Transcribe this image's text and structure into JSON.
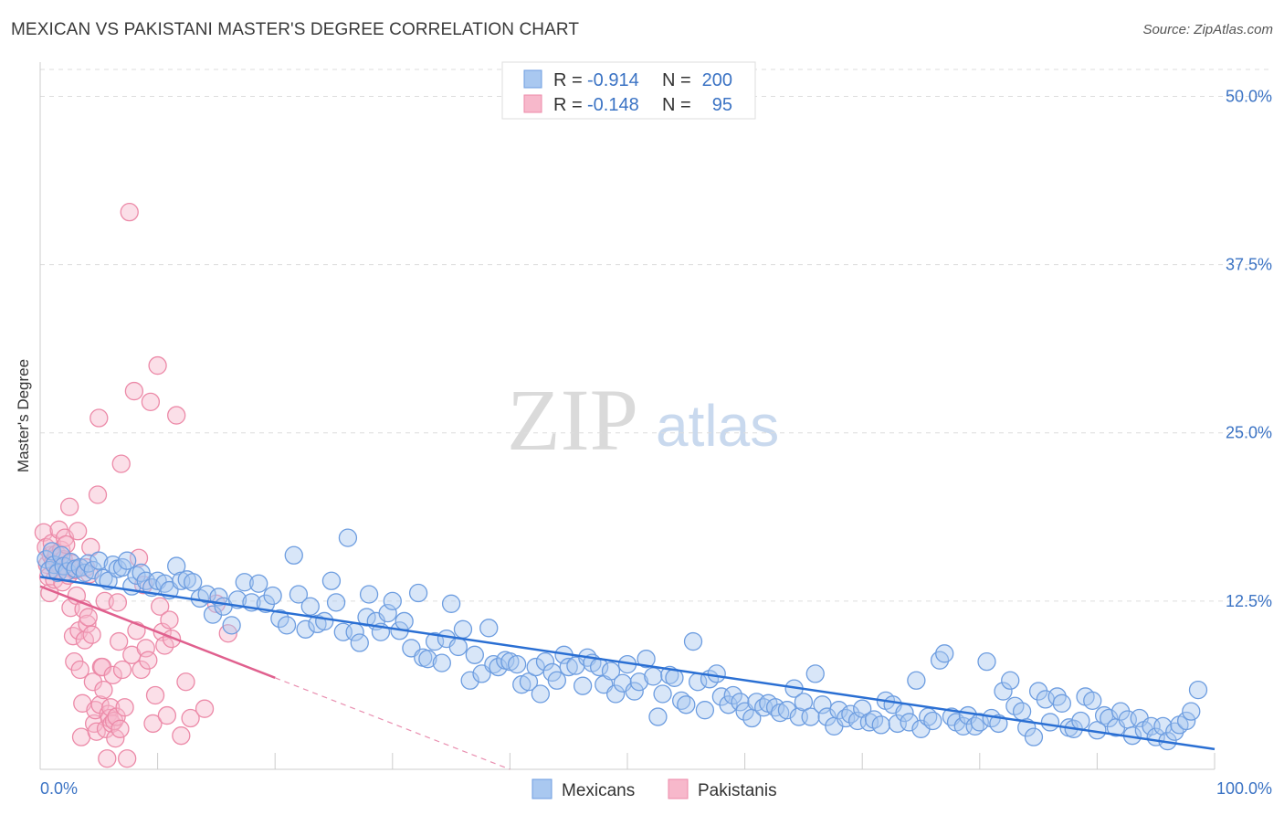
{
  "header": {
    "title": "MEXICAN VS PAKISTANI MASTER'S DEGREE CORRELATION CHART",
    "source": "Source: ZipAtlas.com"
  },
  "watermark": {
    "zip": "ZIP",
    "atlas": "atlas"
  },
  "colors": {
    "mexican_fill": "#a9c8f0",
    "mexican_stroke": "#6d9de0",
    "mexican_line": "#2a6fd3",
    "pakistani_fill": "#f7b8cb",
    "pakistani_stroke": "#ec8aa8",
    "pakistani_line": "#e0608e",
    "tick_label": "#3b73c4",
    "grid": "#dddddd"
  },
  "legend": {
    "rows": [
      {
        "r_label": "R = ",
        "r_value": "-0.914",
        "n_label": "N = ",
        "n_value": "200"
      },
      {
        "r_label": "R = ",
        "r_value": "-0.148",
        "n_label": "N = ",
        "n_value": "95"
      }
    ]
  },
  "bottom_legend": [
    "Mexicans",
    "Pakistanis"
  ],
  "chart_data": {
    "type": "scatter",
    "title": "MEXICAN VS PAKISTANI MASTER'S DEGREE CORRELATION CHART",
    "xlabel": "",
    "ylabel": "Master's Degree",
    "xlim": [
      0,
      100
    ],
    "ylim": [
      0,
      52
    ],
    "y_ticks": [
      12.5,
      25.0,
      37.5,
      50.0
    ],
    "y_tick_labels": [
      "12.5%",
      "25.0%",
      "37.5%",
      "50.0%"
    ],
    "x_tick_labels": [
      "0.0%",
      "100.0%"
    ],
    "grid": true,
    "series": [
      {
        "name": "Mexicans",
        "r": -0.914,
        "n": 200,
        "trend": {
          "x": [
            0,
            100
          ],
          "y": [
            14.3,
            1.5
          ],
          "dashed_from": null
        },
        "points": [
          [
            0.5,
            15.6
          ],
          [
            0.8,
            14.8
          ],
          [
            1,
            16.2
          ],
          [
            1.2,
            15.2
          ],
          [
            1.5,
            14.6
          ],
          [
            1.8,
            15.9
          ],
          [
            2,
            15.1
          ],
          [
            2.3,
            14.7
          ],
          [
            2.6,
            15.4
          ],
          [
            3,
            14.9
          ],
          [
            3.4,
            15.0
          ],
          [
            3.8,
            14.6
          ],
          [
            4.1,
            15.3
          ],
          [
            4.5,
            14.8
          ],
          [
            5,
            15.5
          ],
          [
            5.4,
            14.2
          ],
          [
            5.8,
            14.0
          ],
          [
            6.2,
            15.2
          ],
          [
            6.6,
            14.9
          ],
          [
            7,
            15.0
          ],
          [
            7.4,
            15.5
          ],
          [
            7.8,
            13.6
          ],
          [
            8.2,
            14.4
          ],
          [
            8.6,
            14.6
          ],
          [
            9,
            14.0
          ],
          [
            9.5,
            13.5
          ],
          [
            10,
            14.0
          ],
          [
            10.6,
            13.8
          ],
          [
            11,
            13.3
          ],
          [
            11.6,
            15.1
          ],
          [
            12,
            14.0
          ],
          [
            12.5,
            14.1
          ],
          [
            13,
            13.9
          ],
          [
            13.6,
            12.7
          ],
          [
            14.2,
            13.0
          ],
          [
            14.7,
            11.5
          ],
          [
            15.2,
            12.8
          ],
          [
            15.6,
            12.1
          ],
          [
            16.3,
            10.7
          ],
          [
            16.8,
            12.6
          ],
          [
            17.4,
            13.9
          ],
          [
            18,
            12.4
          ],
          [
            18.6,
            13.8
          ],
          [
            19.2,
            12.3
          ],
          [
            19.8,
            12.9
          ],
          [
            20.4,
            11.2
          ],
          [
            21,
            10.7
          ],
          [
            21.6,
            15.9
          ],
          [
            22,
            13.0
          ],
          [
            22.6,
            10.4
          ],
          [
            23,
            12.1
          ],
          [
            23.6,
            10.8
          ],
          [
            24.2,
            11.0
          ],
          [
            24.8,
            14.0
          ],
          [
            25.2,
            12.4
          ],
          [
            25.8,
            10.2
          ],
          [
            26.2,
            17.2
          ],
          [
            26.8,
            10.2
          ],
          [
            27.2,
            9.4
          ],
          [
            27.8,
            11.3
          ],
          [
            28,
            13.0
          ],
          [
            28.6,
            11.0
          ],
          [
            29,
            10.2
          ],
          [
            29.6,
            11.6
          ],
          [
            30,
            12.5
          ],
          [
            30.6,
            10.3
          ],
          [
            31,
            11.0
          ],
          [
            31.6,
            9.0
          ],
          [
            32.2,
            13.1
          ],
          [
            32.6,
            8.3
          ],
          [
            33,
            8.2
          ],
          [
            33.6,
            9.5
          ],
          [
            34.2,
            7.9
          ],
          [
            34.6,
            9.7
          ],
          [
            35,
            12.3
          ],
          [
            35.6,
            9.1
          ],
          [
            36,
            10.4
          ],
          [
            36.6,
            6.6
          ],
          [
            37,
            8.5
          ],
          [
            37.6,
            7.1
          ],
          [
            38.2,
            10.5
          ],
          [
            38.6,
            7.8
          ],
          [
            39,
            7.6
          ],
          [
            39.6,
            8.1
          ],
          [
            40,
            8.0
          ],
          [
            40.6,
            7.8
          ],
          [
            41,
            6.3
          ],
          [
            41.6,
            6.5
          ],
          [
            42.2,
            7.6
          ],
          [
            42.6,
            5.6
          ],
          [
            43,
            8.0
          ],
          [
            43.6,
            7.2
          ],
          [
            44,
            6.6
          ],
          [
            44.6,
            8.5
          ],
          [
            45,
            7.6
          ],
          [
            45.6,
            7.7
          ],
          [
            46.2,
            6.2
          ],
          [
            46.6,
            8.3
          ],
          [
            47,
            7.9
          ],
          [
            47.6,
            7.6
          ],
          [
            48,
            6.3
          ],
          [
            48.6,
            7.3
          ],
          [
            49,
            5.6
          ],
          [
            49.6,
            6.4
          ],
          [
            50,
            7.8
          ],
          [
            50.6,
            5.8
          ],
          [
            51,
            6.5
          ],
          [
            51.6,
            8.2
          ],
          [
            52.2,
            6.9
          ],
          [
            52.6,
            3.9
          ],
          [
            53,
            5.6
          ],
          [
            53.6,
            7.0
          ],
          [
            54,
            6.8
          ],
          [
            54.6,
            5.1
          ],
          [
            55,
            4.8
          ],
          [
            55.6,
            9.5
          ],
          [
            56,
            6.5
          ],
          [
            56.6,
            4.4
          ],
          [
            57,
            6.7
          ],
          [
            57.6,
            7.1
          ],
          [
            58,
            5.4
          ],
          [
            58.6,
            4.8
          ],
          [
            59,
            5.5
          ],
          [
            59.6,
            5.0
          ],
          [
            60,
            4.3
          ],
          [
            60.6,
            3.8
          ],
          [
            61,
            5.0
          ],
          [
            61.6,
            4.6
          ],
          [
            62,
            4.9
          ],
          [
            62.6,
            4.6
          ],
          [
            63,
            4.2
          ],
          [
            63.6,
            4.4
          ],
          [
            64.2,
            6.0
          ],
          [
            64.6,
            3.9
          ],
          [
            65,
            5.0
          ],
          [
            65.6,
            3.9
          ],
          [
            66,
            7.1
          ],
          [
            66.6,
            4.8
          ],
          [
            67,
            3.9
          ],
          [
            67.6,
            3.2
          ],
          [
            68,
            4.4
          ],
          [
            68.6,
            3.8
          ],
          [
            69,
            4.1
          ],
          [
            69.6,
            3.6
          ],
          [
            70,
            4.5
          ],
          [
            70.6,
            3.5
          ],
          [
            71,
            3.7
          ],
          [
            71.6,
            3.3
          ],
          [
            72,
            5.1
          ],
          [
            72.6,
            4.8
          ],
          [
            73,
            3.4
          ],
          [
            73.6,
            4.2
          ],
          [
            74,
            3.5
          ],
          [
            74.6,
            6.6
          ],
          [
            75,
            3.0
          ],
          [
            75.6,
            3.9
          ],
          [
            76,
            3.6
          ],
          [
            76.6,
            8.1
          ],
          [
            77,
            8.6
          ],
          [
            77.6,
            3.9
          ],
          [
            78,
            3.5
          ],
          [
            78.6,
            3.2
          ],
          [
            79,
            4.0
          ],
          [
            79.6,
            3.2
          ],
          [
            80,
            3.5
          ],
          [
            80.6,
            8.0
          ],
          [
            81,
            3.8
          ],
          [
            81.6,
            3.4
          ],
          [
            82,
            5.8
          ],
          [
            82.6,
            6.6
          ],
          [
            83,
            4.7
          ],
          [
            83.6,
            4.3
          ],
          [
            84,
            3.1
          ],
          [
            84.6,
            2.4
          ],
          [
            85,
            5.8
          ],
          [
            85.6,
            5.2
          ],
          [
            86,
            3.5
          ],
          [
            86.6,
            5.4
          ],
          [
            87,
            4.9
          ],
          [
            87.6,
            3.1
          ],
          [
            88,
            3.0
          ],
          [
            88.6,
            3.6
          ],
          [
            89,
            5.4
          ],
          [
            89.6,
            5.1
          ],
          [
            90,
            2.9
          ],
          [
            90.6,
            4.0
          ],
          [
            91,
            3.8
          ],
          [
            91.6,
            3.1
          ],
          [
            92,
            4.3
          ],
          [
            92.6,
            3.7
          ],
          [
            93,
            2.5
          ],
          [
            93.6,
            3.8
          ],
          [
            94,
            2.9
          ],
          [
            94.6,
            3.2
          ],
          [
            95,
            2.4
          ],
          [
            95.6,
            3.2
          ],
          [
            96,
            2.1
          ],
          [
            96.6,
            2.8
          ],
          [
            97,
            3.3
          ],
          [
            97.6,
            3.6
          ],
          [
            98,
            4.3
          ],
          [
            98.6,
            5.9
          ]
        ]
      },
      {
        "name": "Pakistanis",
        "r": -0.148,
        "n": 95,
        "trend": {
          "x": [
            0,
            40
          ],
          "y": [
            13.6,
            0
          ],
          "solid_until_x": 20
        },
        "points": [
          [
            0.3,
            17.6
          ],
          [
            0.5,
            16.5
          ],
          [
            0.6,
            15.2
          ],
          [
            0.7,
            14.3
          ],
          [
            0.8,
            13.1
          ],
          [
            0.9,
            15.9
          ],
          [
            1,
            16.8
          ],
          [
            1.1,
            15.4
          ],
          [
            1.2,
            14.1
          ],
          [
            1.3,
            15.7
          ],
          [
            1.4,
            16.0
          ],
          [
            1.5,
            14.7
          ],
          [
            1.6,
            17.8
          ],
          [
            1.7,
            15.1
          ],
          [
            1.8,
            16.3
          ],
          [
            1.9,
            13.9
          ],
          [
            2,
            15.6
          ],
          [
            2.1,
            17.2
          ],
          [
            2.2,
            16.7
          ],
          [
            2.3,
            15.0
          ],
          [
            2.4,
            14.4
          ],
          [
            2.5,
            19.5
          ],
          [
            2.6,
            12.0
          ],
          [
            2.7,
            15.3
          ],
          [
            2.8,
            9.9
          ],
          [
            2.9,
            8.0
          ],
          [
            3,
            14.8
          ],
          [
            3.1,
            12.9
          ],
          [
            3.2,
            17.7
          ],
          [
            3.3,
            10.3
          ],
          [
            3.4,
            7.4
          ],
          [
            3.5,
            2.4
          ],
          [
            3.6,
            4.9
          ],
          [
            3.7,
            11.9
          ],
          [
            3.8,
            9.6
          ],
          [
            3.9,
            15.0
          ],
          [
            4,
            10.8
          ],
          [
            4.1,
            11.3
          ],
          [
            4.2,
            14.5
          ],
          [
            4.3,
            16.5
          ],
          [
            4.4,
            10.0
          ],
          [
            4.5,
            6.5
          ],
          [
            4.6,
            3.4
          ],
          [
            4.7,
            4.4
          ],
          [
            4.8,
            2.8
          ],
          [
            4.9,
            20.4
          ],
          [
            5,
            26.1
          ],
          [
            5.1,
            4.8
          ],
          [
            5.2,
            7.6
          ],
          [
            5.3,
            7.6
          ],
          [
            5.4,
            5.9
          ],
          [
            5.5,
            12.5
          ],
          [
            5.6,
            3.0
          ],
          [
            5.7,
            0.8
          ],
          [
            5.8,
            4.1
          ],
          [
            5.9,
            3.8
          ],
          [
            6,
            4.6
          ],
          [
            6.1,
            3.4
          ],
          [
            6.2,
            7.0
          ],
          [
            6.3,
            3.6
          ],
          [
            6.4,
            2.3
          ],
          [
            6.5,
            3.9
          ],
          [
            6.6,
            12.4
          ],
          [
            6.7,
            9.5
          ],
          [
            6.8,
            3.0
          ],
          [
            6.9,
            22.7
          ],
          [
            7,
            7.4
          ],
          [
            7.2,
            4.6
          ],
          [
            7.4,
            0.8
          ],
          [
            7.6,
            41.4
          ],
          [
            7.8,
            8.5
          ],
          [
            8,
            28.1
          ],
          [
            8.2,
            10.3
          ],
          [
            8.4,
            15.7
          ],
          [
            8.6,
            7.4
          ],
          [
            8.8,
            13.7
          ],
          [
            9,
            9.0
          ],
          [
            9.2,
            8.1
          ],
          [
            9.4,
            27.3
          ],
          [
            9.6,
            3.4
          ],
          [
            9.8,
            5.5
          ],
          [
            10,
            30.0
          ],
          [
            10.2,
            12.1
          ],
          [
            10.4,
            10.2
          ],
          [
            10.6,
            9.2
          ],
          [
            10.8,
            4.0
          ],
          [
            11,
            11.1
          ],
          [
            11.2,
            9.7
          ],
          [
            11.6,
            26.3
          ],
          [
            12,
            2.5
          ],
          [
            12.4,
            6.5
          ],
          [
            12.8,
            3.8
          ],
          [
            14,
            4.5
          ],
          [
            15,
            12.3
          ],
          [
            16,
            10.1
          ]
        ]
      }
    ]
  }
}
